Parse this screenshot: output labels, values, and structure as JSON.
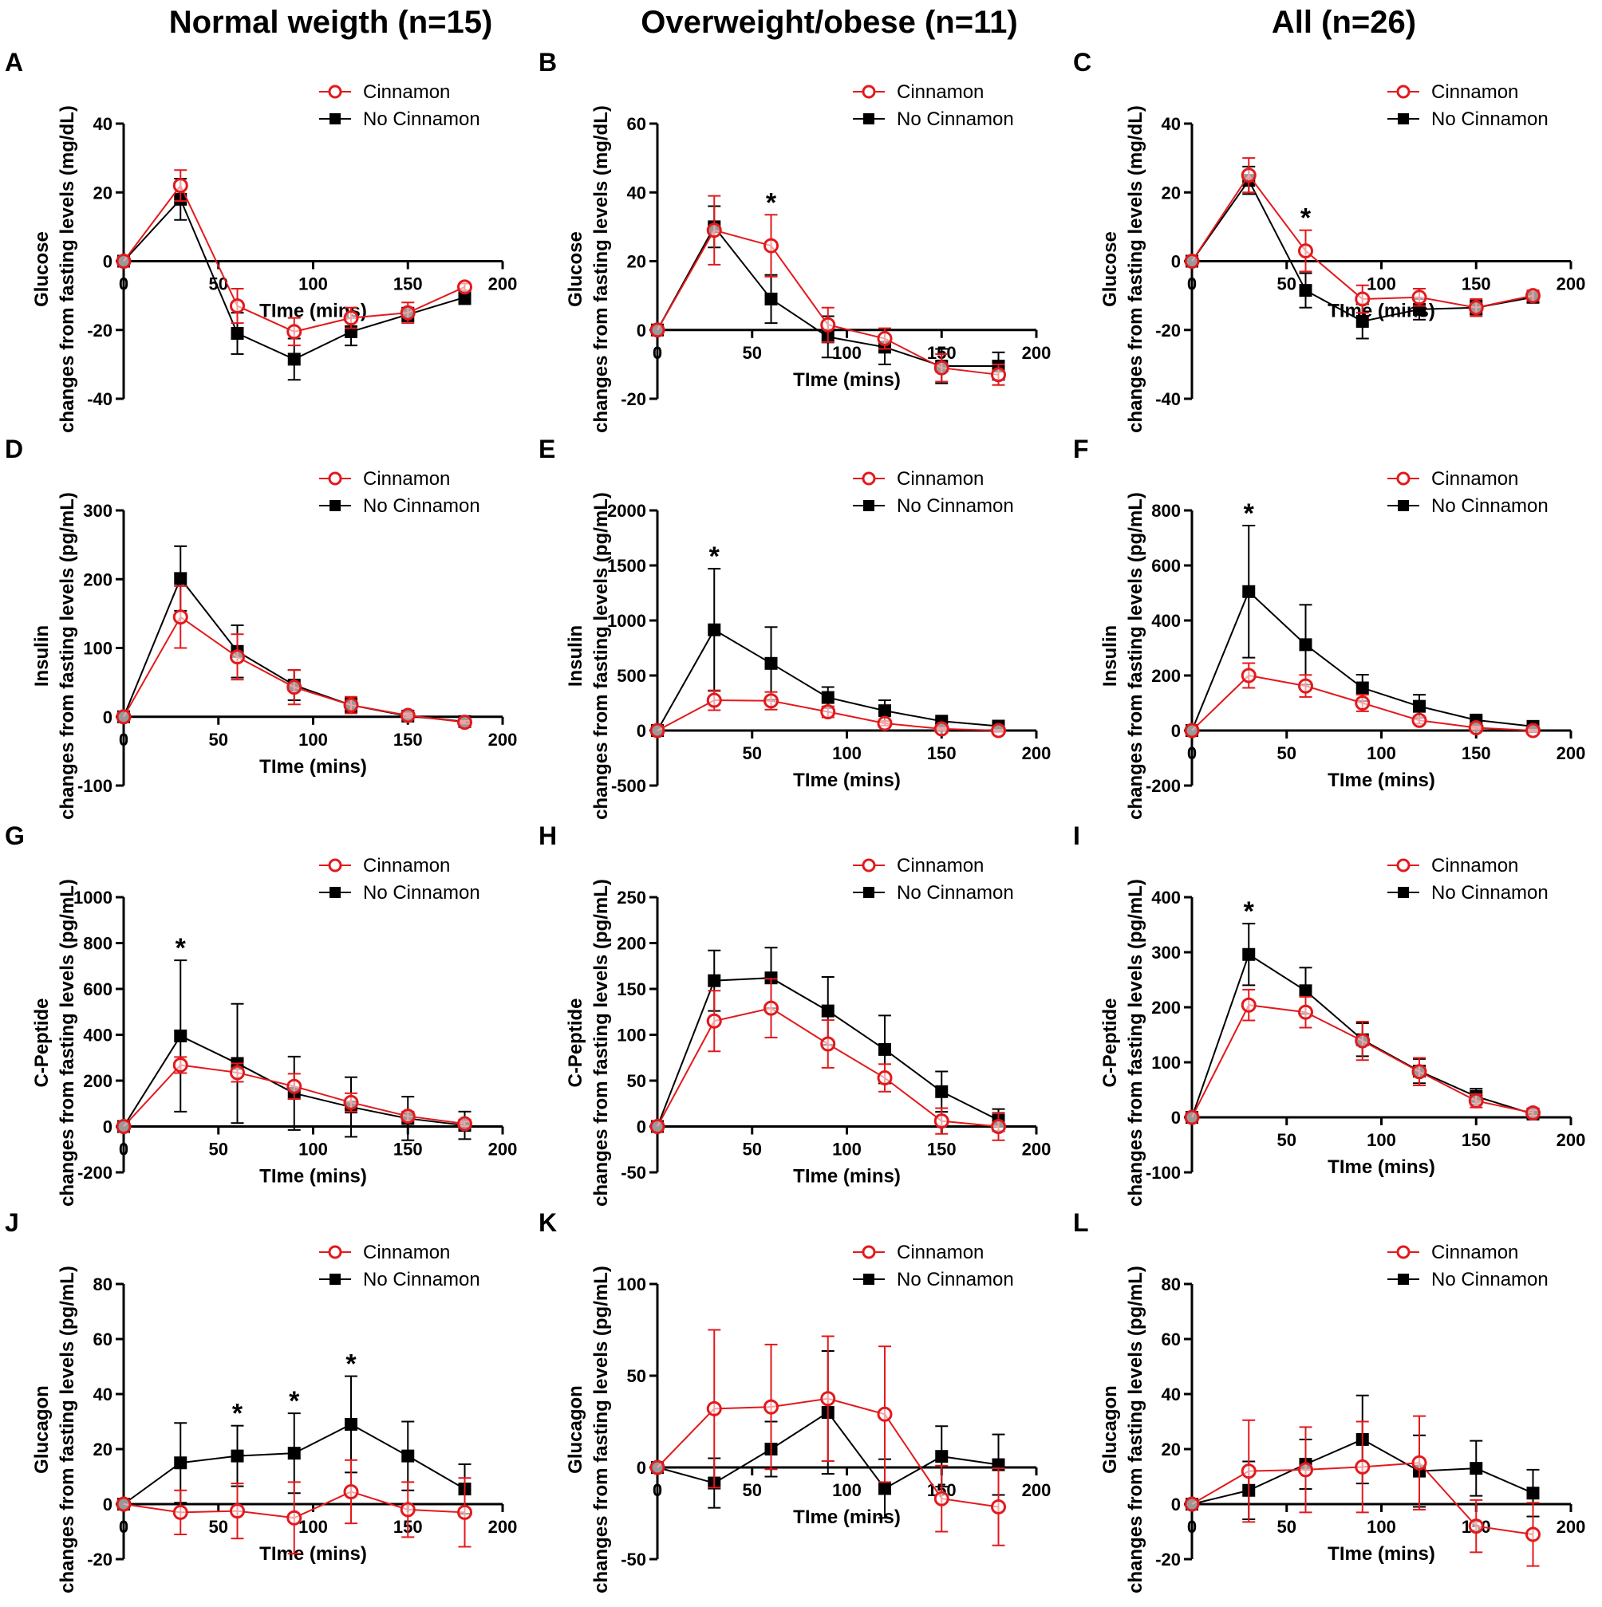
{
  "columns": [
    {
      "title": "Normal weigth (n=15)"
    },
    {
      "title": "Overweight/obese (n=11)"
    },
    {
      "title": "All (n=26)"
    }
  ],
  "legend": {
    "cinnamon": "Cinnamon",
    "no_cinnamon": "No Cinnamon"
  },
  "colors": {
    "cinnamon": "#e3191c",
    "no_cinnamon": "#000000"
  },
  "chart_data": [
    {
      "panel": "A",
      "type": "line",
      "xlabel": "TIme (mins)",
      "ylabel": [
        "Glucose",
        "changes from fasting levels (mg/dL)"
      ],
      "x": [
        0,
        30,
        60,
        90,
        120,
        150,
        180
      ],
      "xlim": [
        0,
        200
      ],
      "xticks": [
        0,
        50,
        100,
        150,
        200
      ],
      "ylim": [
        -40,
        40
      ],
      "yticks": [
        -40,
        -20,
        0,
        20,
        40
      ],
      "legend_position": "top-right",
      "series": [
        {
          "name": "Cinnamon",
          "values": [
            0,
            22,
            -13,
            -20.5,
            -16.5,
            -15,
            -7.5
          ],
          "err": [
            0,
            4.5,
            5,
            4,
            3,
            3,
            1
          ]
        },
        {
          "name": "No Cinnamon",
          "values": [
            0,
            18,
            -21,
            -28.5,
            -20.5,
            -15.5,
            -10.5
          ],
          "err": [
            0,
            6,
            6,
            6,
            4,
            2,
            2
          ]
        }
      ],
      "significance": []
    },
    {
      "panel": "B",
      "type": "line",
      "xlabel": "TIme (mins)",
      "ylabel": [
        "Glucose",
        "changes from fasting levels (mg/dL)"
      ],
      "x": [
        0,
        30,
        60,
        90,
        120,
        150,
        180
      ],
      "xlim": [
        0,
        200
      ],
      "xticks": [
        0,
        50,
        100,
        150,
        200
      ],
      "ylim": [
        -20,
        60
      ],
      "yticks": [
        -20,
        0,
        20,
        40,
        60
      ],
      "legend_position": "top-right",
      "series": [
        {
          "name": "Cinnamon",
          "values": [
            0,
            29,
            24.5,
            1.5,
            -2.5,
            -11,
            -13
          ],
          "err": [
            0,
            10,
            9,
            5,
            3,
            4,
            3
          ]
        },
        {
          "name": "No Cinnamon",
          "values": [
            0,
            30,
            9,
            -2,
            -5,
            -10.5,
            -10.5
          ],
          "err": [
            0,
            6,
            7,
            6,
            5,
            5,
            4
          ]
        }
      ],
      "significance": [
        60
      ]
    },
    {
      "panel": "C",
      "type": "line",
      "xlabel": "TIme (mins)",
      "ylabel": [
        "Glucose",
        "changes from fasting levels (mg/dL)"
      ],
      "x": [
        0,
        30,
        60,
        90,
        120,
        150,
        180
      ],
      "xlim": [
        0,
        200
      ],
      "xticks": [
        0,
        50,
        100,
        150,
        200
      ],
      "ylim": [
        -40,
        40
      ],
      "yticks": [
        -40,
        -20,
        0,
        20,
        40
      ],
      "legend_position": "top-right",
      "series": [
        {
          "name": "Cinnamon",
          "values": [
            0,
            25,
            3,
            -11,
            -10.5,
            -13.5,
            -10
          ],
          "err": [
            0,
            5,
            6,
            4,
            2.5,
            2.5,
            1.5
          ]
        },
        {
          "name": "No Cinnamon",
          "values": [
            0,
            23.5,
            -8.5,
            -17.5,
            -14,
            -13.5,
            -10.5
          ],
          "err": [
            0,
            4,
            5,
            5,
            3,
            2,
            1.5
          ]
        }
      ],
      "significance": [
        60
      ]
    },
    {
      "panel": "D",
      "type": "line",
      "xlabel": "TIme (mins)",
      "ylabel": [
        "Insulin",
        "changes from fasting levels (pg/mL)"
      ],
      "x": [
        0,
        30,
        60,
        90,
        120,
        150,
        180
      ],
      "xlim": [
        0,
        200
      ],
      "xticks": [
        0,
        50,
        100,
        150,
        200
      ],
      "ylim": [
        -100,
        300
      ],
      "yticks": [
        -100,
        0,
        100,
        200,
        300
      ],
      "legend_position": "top-right",
      "series": [
        {
          "name": "Cinnamon",
          "values": [
            0,
            145,
            87,
            43,
            17,
            2,
            -8
          ],
          "err": [
            0,
            45,
            33,
            25,
            12,
            3,
            2
          ]
        },
        {
          "name": "No Cinnamon",
          "values": [
            0,
            201,
            95,
            46,
            17,
            1,
            -7
          ],
          "err": [
            0,
            47,
            38,
            22,
            10,
            3,
            2
          ]
        }
      ],
      "significance": []
    },
    {
      "panel": "E",
      "type": "line",
      "xlabel": "TIme (mins)",
      "ylabel": [
        "Insulin",
        "changes from fasting levels (pg/mL)"
      ],
      "x": [
        0,
        30,
        60,
        90,
        120,
        150,
        180
      ],
      "xlim": [
        0,
        200
      ],
      "xticks": [
        50,
        100,
        150,
        200
      ],
      "ylim": [
        -500,
        2000
      ],
      "yticks": [
        -500,
        0,
        500,
        1000,
        1500,
        2000
      ],
      "legend_position": "top-right",
      "series": [
        {
          "name": "Cinnamon",
          "values": [
            0,
            275,
            270,
            170,
            65,
            15,
            0
          ],
          "err": [
            0,
            90,
            80,
            50,
            20,
            10,
            5
          ]
        },
        {
          "name": "No Cinnamon",
          "values": [
            0,
            915,
            610,
            300,
            180,
            85,
            40
          ],
          "err": [
            0,
            555,
            330,
            95,
            95,
            20,
            10
          ]
        }
      ],
      "significance": [
        30
      ]
    },
    {
      "panel": "F",
      "type": "line",
      "xlabel": "TIme (mins)",
      "ylabel": [
        "Insulin",
        "changes from fasting levels (pg/mL)"
      ],
      "x": [
        0,
        30,
        60,
        90,
        120,
        150,
        180
      ],
      "xlim": [
        0,
        200
      ],
      "xticks": [
        0,
        50,
        100,
        150,
        200
      ],
      "ylim": [
        -200,
        800
      ],
      "yticks": [
        -200,
        0,
        200,
        400,
        600,
        800
      ],
      "legend_position": "top-right",
      "series": [
        {
          "name": "Cinnamon",
          "values": [
            0,
            200,
            162,
            100,
            37,
            10,
            0
          ],
          "err": [
            0,
            45,
            40,
            30,
            12,
            5,
            3
          ]
        },
        {
          "name": "No Cinnamon",
          "values": [
            0,
            505,
            312,
            155,
            88,
            38,
            15
          ],
          "err": [
            0,
            240,
            145,
            48,
            42,
            10,
            5
          ]
        }
      ],
      "significance": [
        30
      ]
    },
    {
      "panel": "G",
      "type": "line",
      "xlabel": "TIme (mins)",
      "ylabel": [
        "C-Peptide",
        "changes from fasting levels (pg/mL)"
      ],
      "x": [
        0,
        30,
        60,
        90,
        120,
        150,
        180
      ],
      "xlim": [
        0,
        200
      ],
      "xticks": [
        0,
        50,
        100,
        150,
        200
      ],
      "ylim": [
        -200,
        1000
      ],
      "yticks": [
        -200,
        0,
        200,
        400,
        600,
        800,
        1000
      ],
      "legend_position": "top-right",
      "series": [
        {
          "name": "Cinnamon",
          "values": [
            0,
            268,
            235,
            175,
            105,
            45,
            12
          ],
          "err": [
            0,
            35,
            40,
            55,
            40,
            20,
            10
          ]
        },
        {
          "name": "No Cinnamon",
          "values": [
            0,
            395,
            275,
            145,
            85,
            35,
            5
          ],
          "err": [
            0,
            330,
            260,
            160,
            130,
            95,
            60
          ]
        }
      ],
      "significance": [
        30
      ]
    },
    {
      "panel": "H",
      "type": "line",
      "xlabel": "TIme (mins)",
      "ylabel": [
        "C-Peptide",
        "changes from fasting levels (pg/mL)"
      ],
      "x": [
        0,
        30,
        60,
        90,
        120,
        150,
        180
      ],
      "xlim": [
        0,
        200
      ],
      "xticks": [
        50,
        100,
        150,
        200
      ],
      "ylim": [
        -50,
        250
      ],
      "yticks": [
        -50,
        0,
        50,
        100,
        150,
        200,
        250
      ],
      "legend_position": "top-right",
      "series": [
        {
          "name": "Cinnamon",
          "values": [
            0,
            115,
            129,
            90,
            53,
            6,
            0
          ],
          "err": [
            0,
            33,
            32,
            26,
            15,
            14,
            15
          ]
        },
        {
          "name": "No Cinnamon",
          "values": [
            0,
            159,
            162,
            126,
            84,
            38,
            7
          ],
          "err": [
            0,
            33,
            33,
            37,
            37,
            22,
            12
          ]
        }
      ],
      "significance": []
    },
    {
      "panel": "I",
      "type": "line",
      "xlabel": "TIme (mins)",
      "ylabel": [
        "C-Peptide",
        "changes from fasting levels (pg/mL)"
      ],
      "x": [
        0,
        30,
        60,
        90,
        120,
        150,
        180
      ],
      "xlim": [
        0,
        200
      ],
      "xticks": [
        50,
        100,
        150,
        200
      ],
      "ylim": [
        -100,
        400
      ],
      "yticks": [
        -100,
        0,
        100,
        200,
        300,
        400
      ],
      "legend_position": "top-right",
      "series": [
        {
          "name": "Cinnamon",
          "values": [
            0,
            204,
            191,
            139,
            83,
            30,
            8
          ],
          "err": [
            0,
            28,
            28,
            35,
            25,
            12,
            5
          ]
        },
        {
          "name": "No Cinnamon",
          "values": [
            0,
            296,
            230,
            141,
            84,
            38,
            6
          ],
          "err": [
            0,
            56,
            42,
            30,
            22,
            14,
            5
          ]
        }
      ],
      "significance": [
        30
      ]
    },
    {
      "panel": "J",
      "type": "line",
      "xlabel": "TIme (mins)",
      "ylabel": [
        "Glucagon",
        "changes from fasting levels (pg/mL)"
      ],
      "x": [
        0,
        30,
        60,
        90,
        120,
        150,
        180
      ],
      "xlim": [
        0,
        200
      ],
      "xticks": [
        0,
        50,
        100,
        150,
        200
      ],
      "ylim": [
        -20,
        80
      ],
      "yticks": [
        -20,
        0,
        20,
        40,
        60,
        80
      ],
      "legend_position": "top-right",
      "series": [
        {
          "name": "Cinnamon",
          "values": [
            0,
            -3,
            -2.5,
            -5,
            4.5,
            -2,
            -3
          ],
          "err": [
            0,
            8,
            10,
            13,
            11.5,
            10,
            12.5
          ]
        },
        {
          "name": "No Cinnamon",
          "values": [
            0,
            15,
            17.5,
            18.5,
            29,
            17.5,
            5.5
          ],
          "err": [
            0,
            14.5,
            11,
            14.5,
            17.5,
            12.5,
            9
          ]
        }
      ],
      "significance": [
        60,
        90,
        120
      ]
    },
    {
      "panel": "K",
      "type": "line",
      "xlabel": "TIme (mins)",
      "ylabel": [
        "Glucagon",
        "changes from fasting levels (pg/mL)"
      ],
      "x": [
        0,
        30,
        60,
        90,
        120,
        150,
        180
      ],
      "xlim": [
        0,
        200
      ],
      "xticks": [
        0,
        50,
        100,
        150,
        200
      ],
      "ylim": [
        -50,
        100
      ],
      "yticks": [
        -50,
        0,
        50,
        100
      ],
      "legend_position": "top-right",
      "series": [
        {
          "name": "Cinnamon",
          "values": [
            0,
            32,
            33,
            37.5,
            29,
            -17,
            -21.5
          ],
          "err": [
            0,
            43,
            34,
            34,
            37,
            18,
            21
          ]
        },
        {
          "name": "No Cinnamon",
          "values": [
            0,
            -8.5,
            10,
            30,
            -11.5,
            6,
            1.5
          ],
          "err": [
            0,
            13.5,
            15,
            33.5,
            16,
            16.5,
            16.5
          ]
        }
      ],
      "significance": []
    },
    {
      "panel": "L",
      "type": "line",
      "xlabel": "TIme (mins)",
      "ylabel": [
        "Glucagon",
        "changes from fasting levels (pg/mL)"
      ],
      "x": [
        0,
        30,
        60,
        90,
        120,
        150,
        180
      ],
      "xlim": [
        0,
        200
      ],
      "xticks": [
        0,
        50,
        100,
        150,
        200
      ],
      "ylim": [
        -20,
        80
      ],
      "yticks": [
        -20,
        0,
        20,
        40,
        60,
        80
      ],
      "legend_position": "top-right",
      "series": [
        {
          "name": "Cinnamon",
          "values": [
            0,
            12,
            12.5,
            13.5,
            15,
            -8,
            -11
          ],
          "err": [
            0,
            18.5,
            15.5,
            16.5,
            17,
            9.5,
            11.5
          ]
        },
        {
          "name": "No Cinnamon",
          "values": [
            0,
            5,
            14.5,
            23.5,
            12,
            13,
            4
          ],
          "err": [
            0,
            10.5,
            9,
            16,
            13,
            10,
            8.5
          ]
        }
      ],
      "significance": []
    }
  ]
}
